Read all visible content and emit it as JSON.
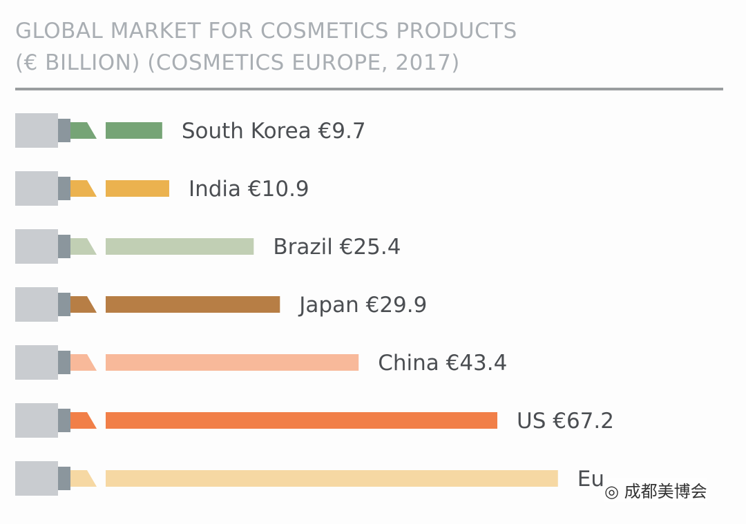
{
  "chart_data": {
    "type": "bar",
    "orientation": "horizontal",
    "title": "GLOBAL MARKET FOR COSMETICS PRODUCTS",
    "subtitle": "(€ BILLION) (COSMETICS EUROPE, 2017)",
    "categories": [
      "South Korea",
      "India",
      "Brazil",
      "Japan",
      "China",
      "US",
      "Europe"
    ],
    "values": [
      9.7,
      10.9,
      25.4,
      29.9,
      43.4,
      67.2,
      77.6
    ],
    "labels": [
      "South Korea €9.7",
      "India €10.9",
      "Brazil €25.4",
      "Japan €29.9",
      "China €43.4",
      "US €67.2",
      "Eu"
    ],
    "colors": [
      "#76a476",
      "#ebb24f",
      "#c1cfb4",
      "#b77e45",
      "#f8b99a",
      "#f17f48",
      "#f6d8a3"
    ],
    "xlim": [
      0,
      80
    ],
    "grid": false,
    "legend": "none"
  },
  "watermark": "成都美博会"
}
